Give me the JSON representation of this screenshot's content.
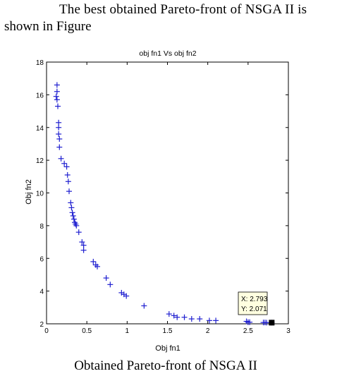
{
  "intro": {
    "line1": "The best obtained Pareto-front of NSGA  II is",
    "line2": "shown in Figure"
  },
  "caption": "Obtained Pareto-front of NSGA II",
  "colors": {
    "marker": "#1f1fd0",
    "axes": "#000000",
    "tip_bg": "#ffffe0"
  },
  "chart_data": {
    "type": "scatter",
    "title": "obj fn1 Vs obj fn2",
    "xlabel": "Obj fn1",
    "ylabel": "Obj fn2",
    "xlim": [
      0,
      3
    ],
    "ylim": [
      2,
      18
    ],
    "xticks": [
      "0",
      "0.5",
      "1",
      "1.5",
      "2",
      "2.5",
      "3"
    ],
    "yticks": [
      "2",
      "4",
      "6",
      "8",
      "10",
      "12",
      "14",
      "16",
      "18"
    ],
    "marker": "+",
    "grid": false,
    "legend": "none",
    "series": [
      {
        "x": [
          0.13,
          0.13,
          0.12,
          0.13,
          0.14,
          0.15,
          0.15,
          0.15,
          0.16,
          0.16,
          0.18,
          0.22,
          0.25,
          0.26,
          0.27,
          0.28,
          0.3,
          0.31,
          0.32,
          0.33,
          0.34,
          0.35,
          0.36,
          0.37,
          0.4,
          0.44,
          0.46,
          0.46,
          0.58,
          0.61,
          0.63,
          0.74,
          0.79,
          0.93,
          0.96,
          0.99,
          1.21,
          1.52,
          1.58,
          1.62,
          1.71,
          1.8,
          1.9,
          2.02,
          2.1,
          2.48,
          2.5,
          2.52,
          2.69,
          2.71,
          2.73,
          2.793
        ],
        "y": [
          16.6,
          16.2,
          15.9,
          15.7,
          15.3,
          14.3,
          14.0,
          13.6,
          13.3,
          12.8,
          12.1,
          11.8,
          11.6,
          11.1,
          10.7,
          10.1,
          9.4,
          9.1,
          8.8,
          8.6,
          8.4,
          8.2,
          8.1,
          8.0,
          7.6,
          7.0,
          6.8,
          6.5,
          5.8,
          5.6,
          5.5,
          4.8,
          4.4,
          3.9,
          3.8,
          3.7,
          3.1,
          2.6,
          2.5,
          2.4,
          2.4,
          2.3,
          2.3,
          2.2,
          2.2,
          2.15,
          2.1,
          2.1,
          2.08,
          2.08,
          2.07,
          2.071
        ]
      }
    ],
    "datatip": {
      "x_text": "X: 2.793",
      "y_text": "Y: 2.071",
      "x": 2.793,
      "y": 2.071
    }
  }
}
